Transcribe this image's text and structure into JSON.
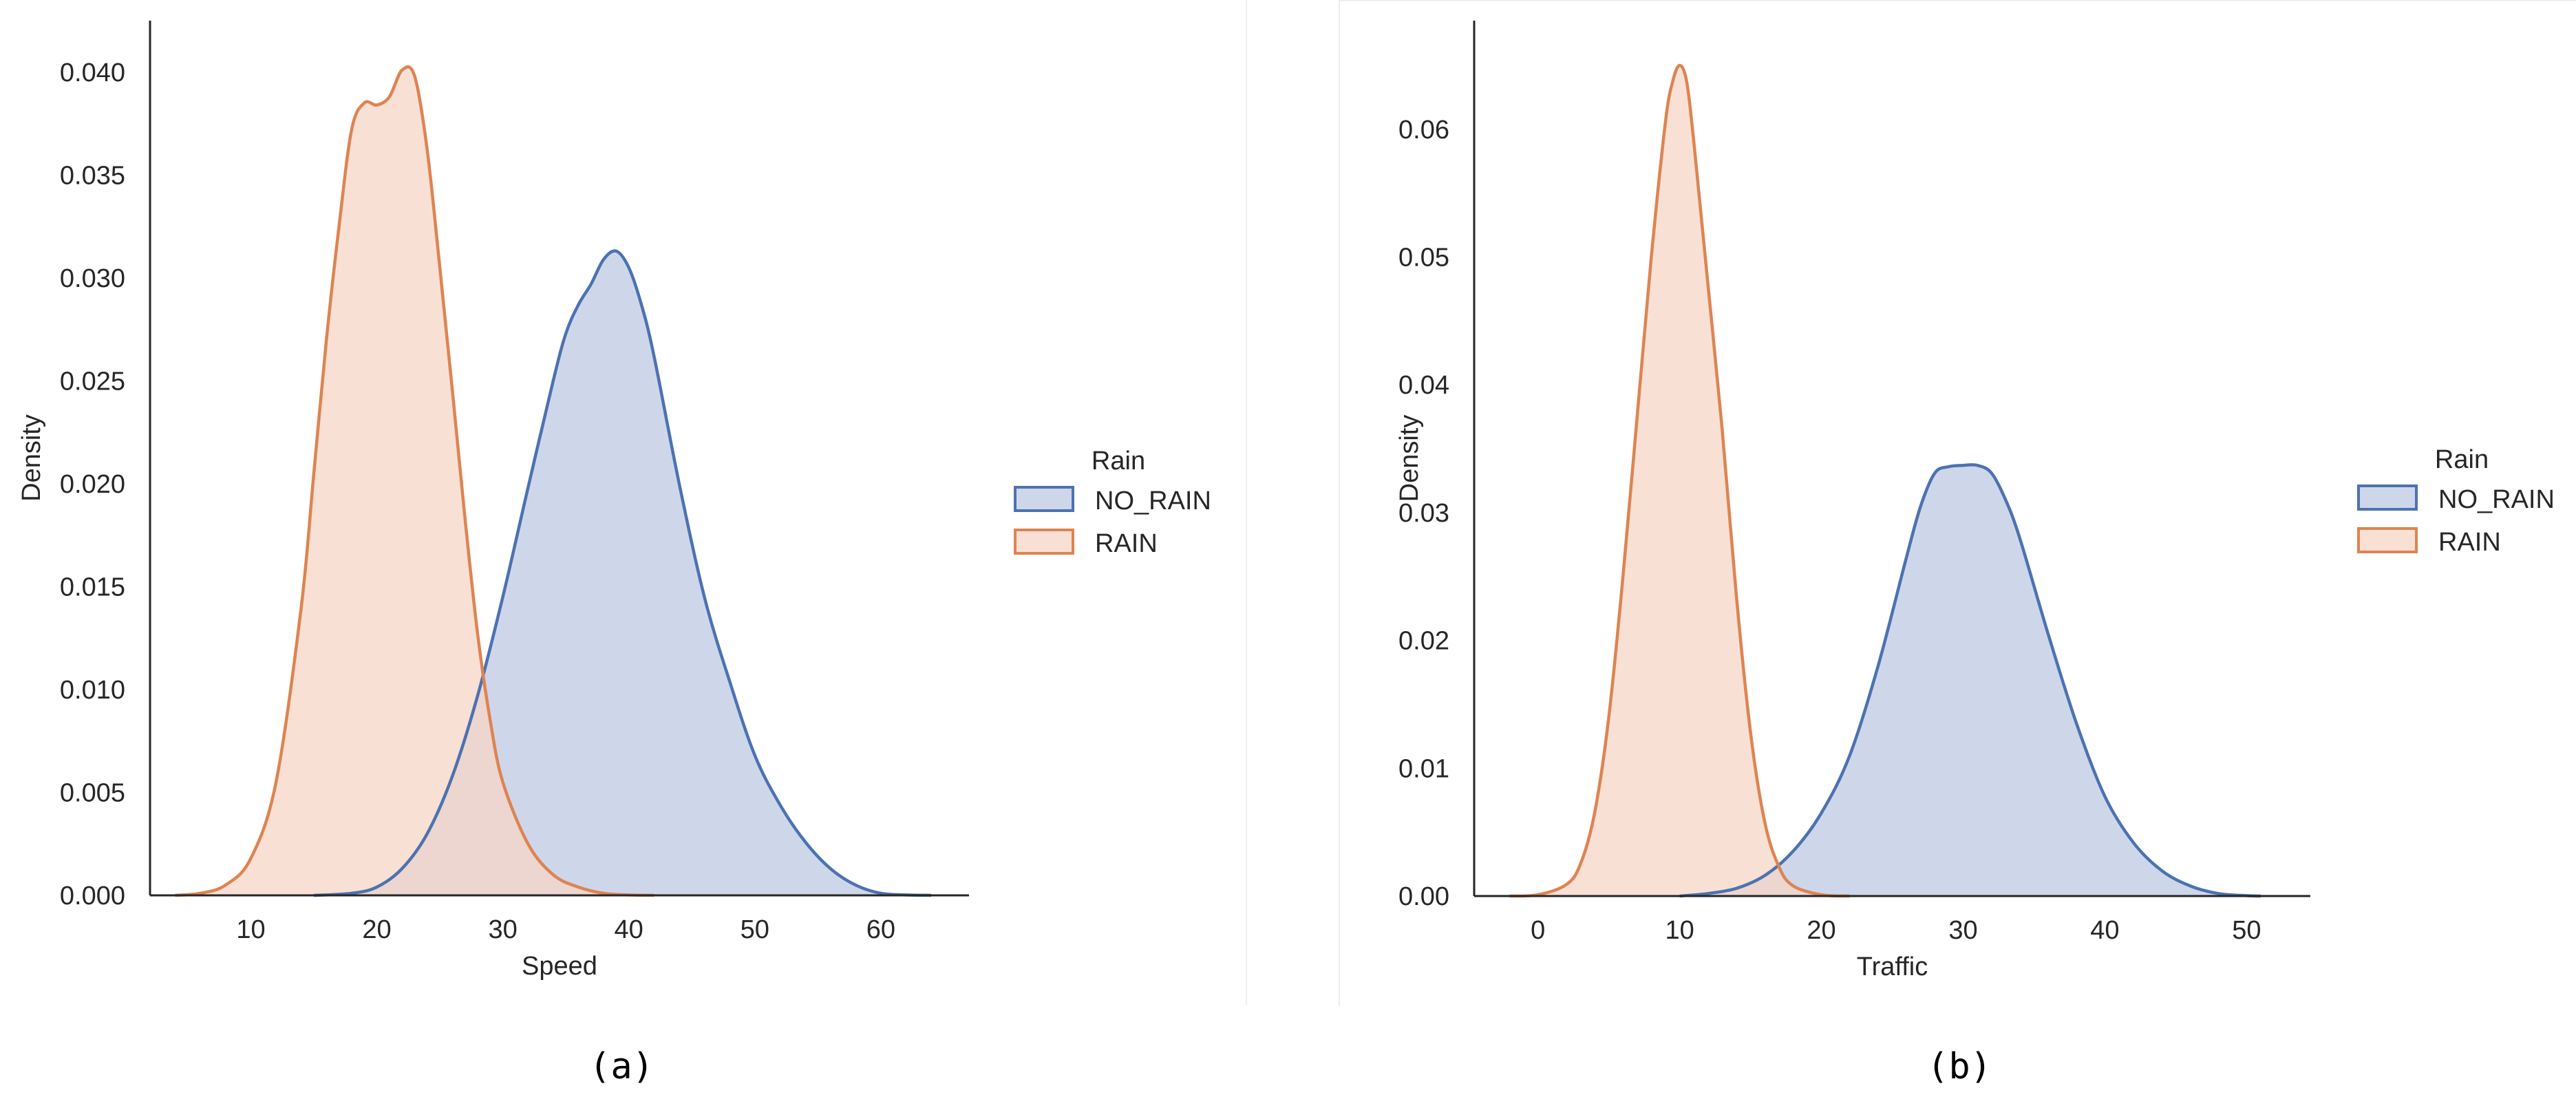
{
  "colors": {
    "no_rain_line": "#4c72b0",
    "no_rain_fill": "#c6d0e6",
    "rain_line": "#dd8452",
    "rain_fill": "#f6d6c5",
    "axis": "#262626"
  },
  "captions": {
    "a": "(a)",
    "b": "(b)"
  },
  "chart_data": [
    {
      "type": "area",
      "title": "",
      "xlabel": "Speed",
      "ylabel": "Density",
      "xlim": [
        2,
        67
      ],
      "ylim": [
        0,
        0.0425
      ],
      "xticks": [
        10,
        20,
        30,
        40,
        50,
        60
      ],
      "xtick_labels": [
        "10",
        "20",
        "30",
        "40",
        "50",
        "60"
      ],
      "yticks": [
        0,
        0.005,
        0.01,
        0.015,
        0.02,
        0.025,
        0.03,
        0.035,
        0.04
      ],
      "ytick_labels": [
        "0.000",
        "0.005",
        "0.010",
        "0.015",
        "0.020",
        "0.025",
        "0.030",
        "0.035",
        "0.040"
      ],
      "legend": {
        "title": "Rain",
        "placement": "right",
        "entries": [
          "NO_RAIN",
          "RAIN"
        ]
      },
      "series": [
        {
          "name": "NO_RAIN",
          "x": [
            15,
            18,
            20,
            22,
            24,
            26,
            28,
            30,
            32,
            34,
            35,
            36,
            37,
            38,
            39,
            40,
            41,
            42,
            44,
            46,
            48,
            50,
            52,
            54,
            56,
            58,
            60,
            62,
            64
          ],
          "y": [
            0,
            0.0001,
            0.0004,
            0.0013,
            0.003,
            0.0058,
            0.0097,
            0.0145,
            0.0198,
            0.025,
            0.0273,
            0.0287,
            0.0297,
            0.0309,
            0.0313,
            0.0305,
            0.0287,
            0.0262,
            0.02,
            0.0145,
            0.0104,
            0.0068,
            0.0044,
            0.0026,
            0.0013,
            0.0005,
            0.0001,
            2e-05,
            0
          ]
        },
        {
          "name": "RAIN",
          "x": [
            4,
            6,
            8,
            10,
            12,
            14,
            15,
            16,
            17,
            18,
            19,
            20,
            21,
            22,
            23,
            24,
            25,
            26,
            27,
            28,
            29,
            30,
            32,
            34,
            36,
            38,
            40,
            42
          ],
          "y": [
            0,
            0.0001,
            0.0005,
            0.0018,
            0.0055,
            0.014,
            0.0205,
            0.027,
            0.0325,
            0.0372,
            0.0385,
            0.0384,
            0.0388,
            0.0401,
            0.0398,
            0.0362,
            0.0305,
            0.0245,
            0.0183,
            0.0127,
            0.0085,
            0.0055,
            0.0025,
            0.001,
            0.0004,
            0.0001,
            2e-05,
            0
          ]
        }
      ]
    },
    {
      "type": "area",
      "title": "",
      "xlabel": "Traffic",
      "ylabel": "Density",
      "xlim": [
        -4.5,
        54.5
      ],
      "ylim": [
        0,
        0.0685
      ],
      "xticks": [
        0,
        10,
        20,
        30,
        40,
        50
      ],
      "xtick_labels": [
        "0",
        "10",
        "20",
        "30",
        "40",
        "50"
      ],
      "yticks": [
        0,
        0.01,
        0.02,
        0.03,
        0.04,
        0.05,
        0.06
      ],
      "ytick_labels": [
        "0.00",
        "0.01",
        "0.02",
        "0.03",
        "0.04",
        "0.05",
        "0.06"
      ],
      "legend": {
        "title": "Rain",
        "placement": "right",
        "entries": [
          "NO_RAIN",
          "RAIN"
        ]
      },
      "series": [
        {
          "name": "NO_RAIN",
          "x": [
            10,
            12,
            14,
            16,
            18,
            20,
            22,
            24,
            26,
            27,
            28,
            29,
            30,
            31,
            32,
            33,
            34,
            36,
            38,
            40,
            42,
            44,
            46,
            48,
            50,
            51
          ],
          "y": [
            0,
            0.0002,
            0.0006,
            0.0016,
            0.0035,
            0.0065,
            0.011,
            0.018,
            0.0265,
            0.0305,
            0.0331,
            0.0336,
            0.0337,
            0.0337,
            0.0331,
            0.031,
            0.028,
            0.0205,
            0.0135,
            0.0078,
            0.0042,
            0.002,
            0.0008,
            0.0002,
            3e-05,
            0
          ]
        },
        {
          "name": "RAIN",
          "x": [
            -2,
            0,
            2,
            3,
            4,
            5,
            6,
            7,
            8,
            9,
            9.5,
            10,
            10.5,
            11,
            12,
            13,
            14,
            15,
            16,
            17,
            18,
            20,
            22
          ],
          "y": [
            0,
            0.0001,
            0.0009,
            0.0025,
            0.0065,
            0.014,
            0.025,
            0.0375,
            0.05,
            0.0606,
            0.0637,
            0.065,
            0.0637,
            0.059,
            0.0478,
            0.0365,
            0.0235,
            0.0128,
            0.0058,
            0.0023,
            0.0008,
            0.0001,
            0
          ]
        }
      ]
    }
  ]
}
